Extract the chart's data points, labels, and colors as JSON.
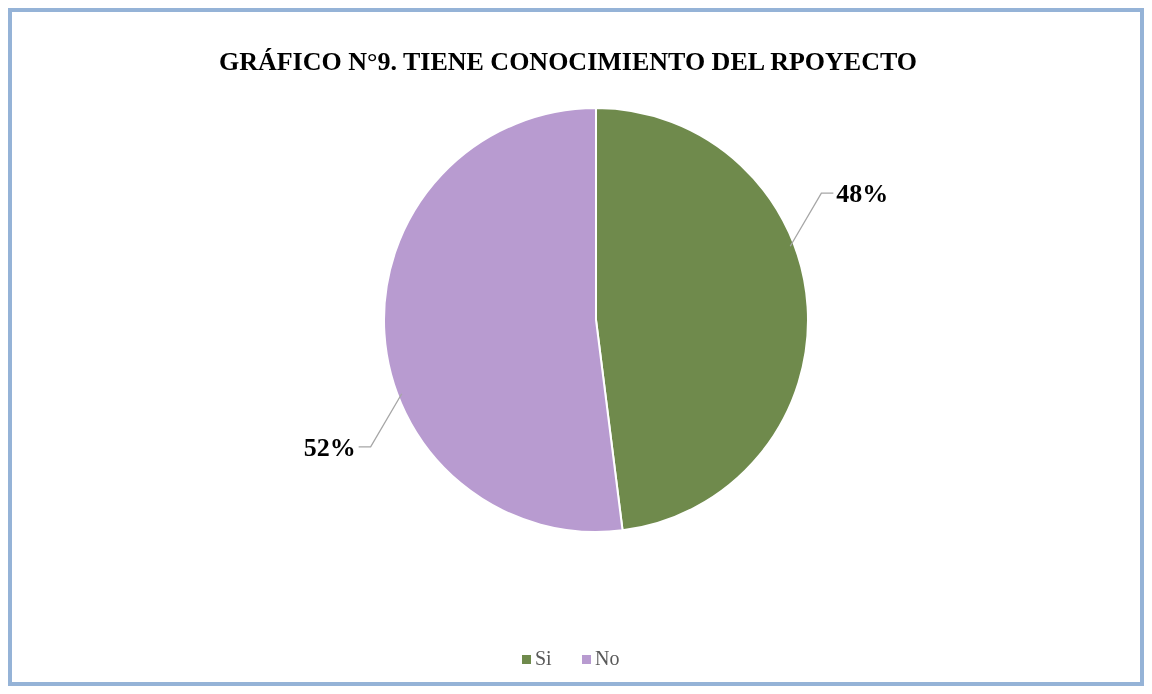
{
  "chart_data": {
    "type": "pie",
    "title": "GRÁFICO N°9. TIENE CONOCIMIENTO DEL RPOYECTO",
    "categories": [
      "Si",
      "No"
    ],
    "values": [
      48,
      52
    ],
    "colors": [
      "#6f8a4c",
      "#b89bd0"
    ],
    "value_labels": [
      "48%",
      "52%"
    ],
    "legend": "bottom"
  }
}
